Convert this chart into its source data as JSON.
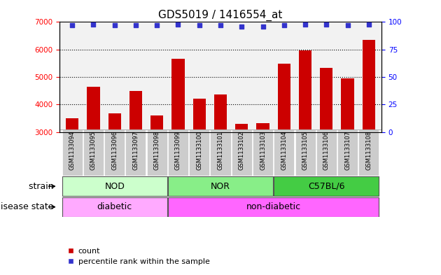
{
  "title": "GDS5019 / 1416554_at",
  "samples": [
    "GSM1133094",
    "GSM1133095",
    "GSM1133096",
    "GSM1133097",
    "GSM1133098",
    "GSM1133099",
    "GSM1133100",
    "GSM1133101",
    "GSM1133102",
    "GSM1133103",
    "GSM1133104",
    "GSM1133105",
    "GSM1133106",
    "GSM1133107",
    "GSM1133108"
  ],
  "counts": [
    3500,
    4650,
    3680,
    4480,
    3600,
    5650,
    4220,
    4360,
    3300,
    3310,
    5480,
    5960,
    5330,
    4950,
    6350
  ],
  "percentile_ranks": [
    97,
    98,
    97,
    97,
    97,
    98,
    97,
    97,
    96,
    96,
    97,
    98,
    98,
    97,
    98
  ],
  "ylim_left": [
    3000,
    7000
  ],
  "ylim_right": [
    0,
    100
  ],
  "bar_color": "#cc0000",
  "dot_color": "#3333cc",
  "bar_bottom": 3000,
  "groups": [
    {
      "label": "NOD",
      "start": 0,
      "end": 4,
      "color": "#ccffcc"
    },
    {
      "label": "NOR",
      "start": 5,
      "end": 9,
      "color": "#88ee88"
    },
    {
      "label": "C57BL/6",
      "start": 10,
      "end": 14,
      "color": "#44cc44"
    }
  ],
  "disease_groups": [
    {
      "label": "diabetic",
      "start": 0,
      "end": 4,
      "color": "#ffaaff"
    },
    {
      "label": "non-diabetic",
      "start": 5,
      "end": 14,
      "color": "#ff66ff"
    }
  ],
  "strain_label": "strain",
  "disease_label": "disease state",
  "legend_count_label": "count",
  "legend_pct_label": "percentile rank within the sample",
  "dotted_lines": [
    4000,
    5000,
    6000
  ],
  "right_yticks": [
    0,
    25,
    50,
    75,
    100
  ],
  "left_yticks": [
    3000,
    4000,
    5000,
    6000,
    7000
  ],
  "background_color": "#ffffff",
  "plot_bg_color": "#f2f2f2",
  "tick_label_bg": "#cccccc",
  "title_fontsize": 11,
  "tick_fontsize": 7.5,
  "annot_fontsize": 9,
  "label_fontsize": 9
}
